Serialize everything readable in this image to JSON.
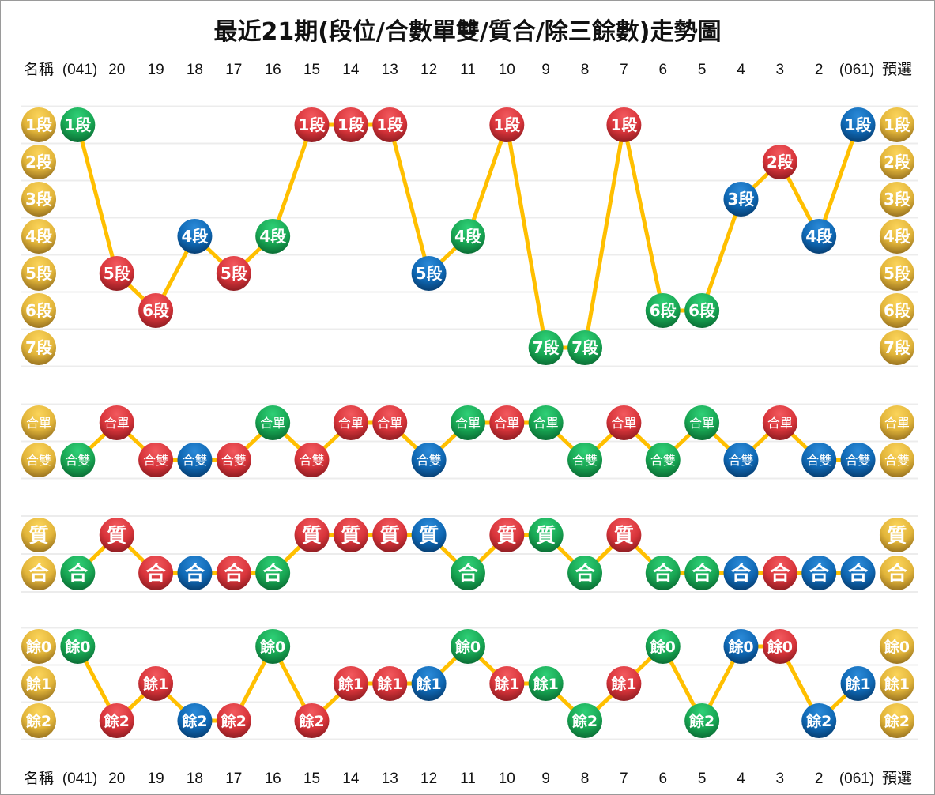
{
  "title": "最近21期(段位/合數單雙/質合/除三餘數)走勢圖",
  "header_labels": [
    "名稱",
    "(041)",
    "20",
    "19",
    "18",
    "17",
    "16",
    "15",
    "14",
    "13",
    "12",
    "11",
    "10",
    "9",
    "8",
    "7",
    "6",
    "5",
    "4",
    "3",
    "2",
    "(061)",
    "預選"
  ],
  "colors": {
    "green": "#1aa653",
    "red": "#d8343a",
    "blue": "#1068b4",
    "gold": "#e0b53a",
    "line": "#ffbf00",
    "grid": "#ececec"
  },
  "chart_data": {
    "type": "line",
    "columns": [
      "(041)",
      "20",
      "19",
      "18",
      "17",
      "16",
      "15",
      "14",
      "13",
      "12",
      "11",
      "10",
      "9",
      "8",
      "7",
      "6",
      "5",
      "4",
      "3",
      "2",
      "(061)"
    ],
    "column_colors": [
      "green",
      "red",
      "red",
      "blue",
      "red",
      "green",
      "red",
      "red",
      "red",
      "blue",
      "green",
      "red",
      "green",
      "green",
      "red",
      "green",
      "green",
      "blue",
      "red",
      "blue",
      "blue"
    ],
    "panels": [
      {
        "levels": [
          "1段",
          "2段",
          "3段",
          "4段",
          "5段",
          "6段",
          "7段"
        ],
        "values": [
          "1段",
          "5段",
          "6段",
          "4段",
          "5段",
          "4段",
          "1段",
          "1段",
          "1段",
          "5段",
          "4段",
          "1段",
          "7段",
          "7段",
          "1段",
          "6段",
          "6段",
          "3段",
          "2段",
          "4段",
          "1段"
        ]
      },
      {
        "levels": [
          "合單",
          "合雙"
        ],
        "values": [
          "合雙",
          "合單",
          "合雙",
          "合雙",
          "合雙",
          "合單",
          "合雙",
          "合單",
          "合單",
          "合雙",
          "合單",
          "合單",
          "合單",
          "合雙",
          "合單",
          "合雙",
          "合單",
          "合雙",
          "合單",
          "合雙",
          "合雙"
        ]
      },
      {
        "levels": [
          "質",
          "合"
        ],
        "values": [
          "合",
          "質",
          "合",
          "合",
          "合",
          "合",
          "質",
          "質",
          "質",
          "質",
          "合",
          "質",
          "質",
          "合",
          "質",
          "合",
          "合",
          "合",
          "合",
          "合",
          "合"
        ]
      },
      {
        "levels": [
          "餘0",
          "餘1",
          "餘2"
        ],
        "values": [
          "餘0",
          "餘2",
          "餘1",
          "餘2",
          "餘2",
          "餘0",
          "餘2",
          "餘1",
          "餘1",
          "餘1",
          "餘0",
          "餘1",
          "餘1",
          "餘2",
          "餘1",
          "餘0",
          "餘2",
          "餘0",
          "餘0",
          "餘2",
          "餘1"
        ]
      }
    ]
  }
}
